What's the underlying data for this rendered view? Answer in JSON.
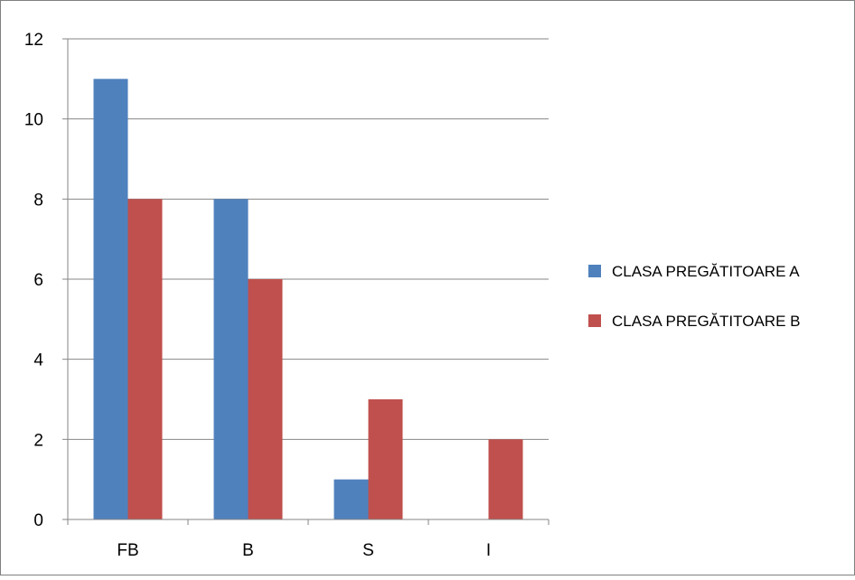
{
  "chart_data": {
    "type": "bar",
    "title": "",
    "xlabel": "",
    "ylabel": "",
    "categories": [
      "FB",
      "B",
      "S",
      "I"
    ],
    "ylim": [
      0,
      12
    ],
    "yticks": [
      0,
      2,
      4,
      6,
      8,
      10,
      12
    ],
    "grid": true,
    "legend": "right",
    "series": [
      {
        "name": "CLASA PREGĂTITOARE  A",
        "color": "#4f81bd",
        "values": [
          11,
          8,
          1,
          0
        ]
      },
      {
        "name": "CLASA PREGĂTITOARE B",
        "color": "#c0504d",
        "values": [
          8,
          6,
          3,
          2
        ]
      }
    ]
  }
}
